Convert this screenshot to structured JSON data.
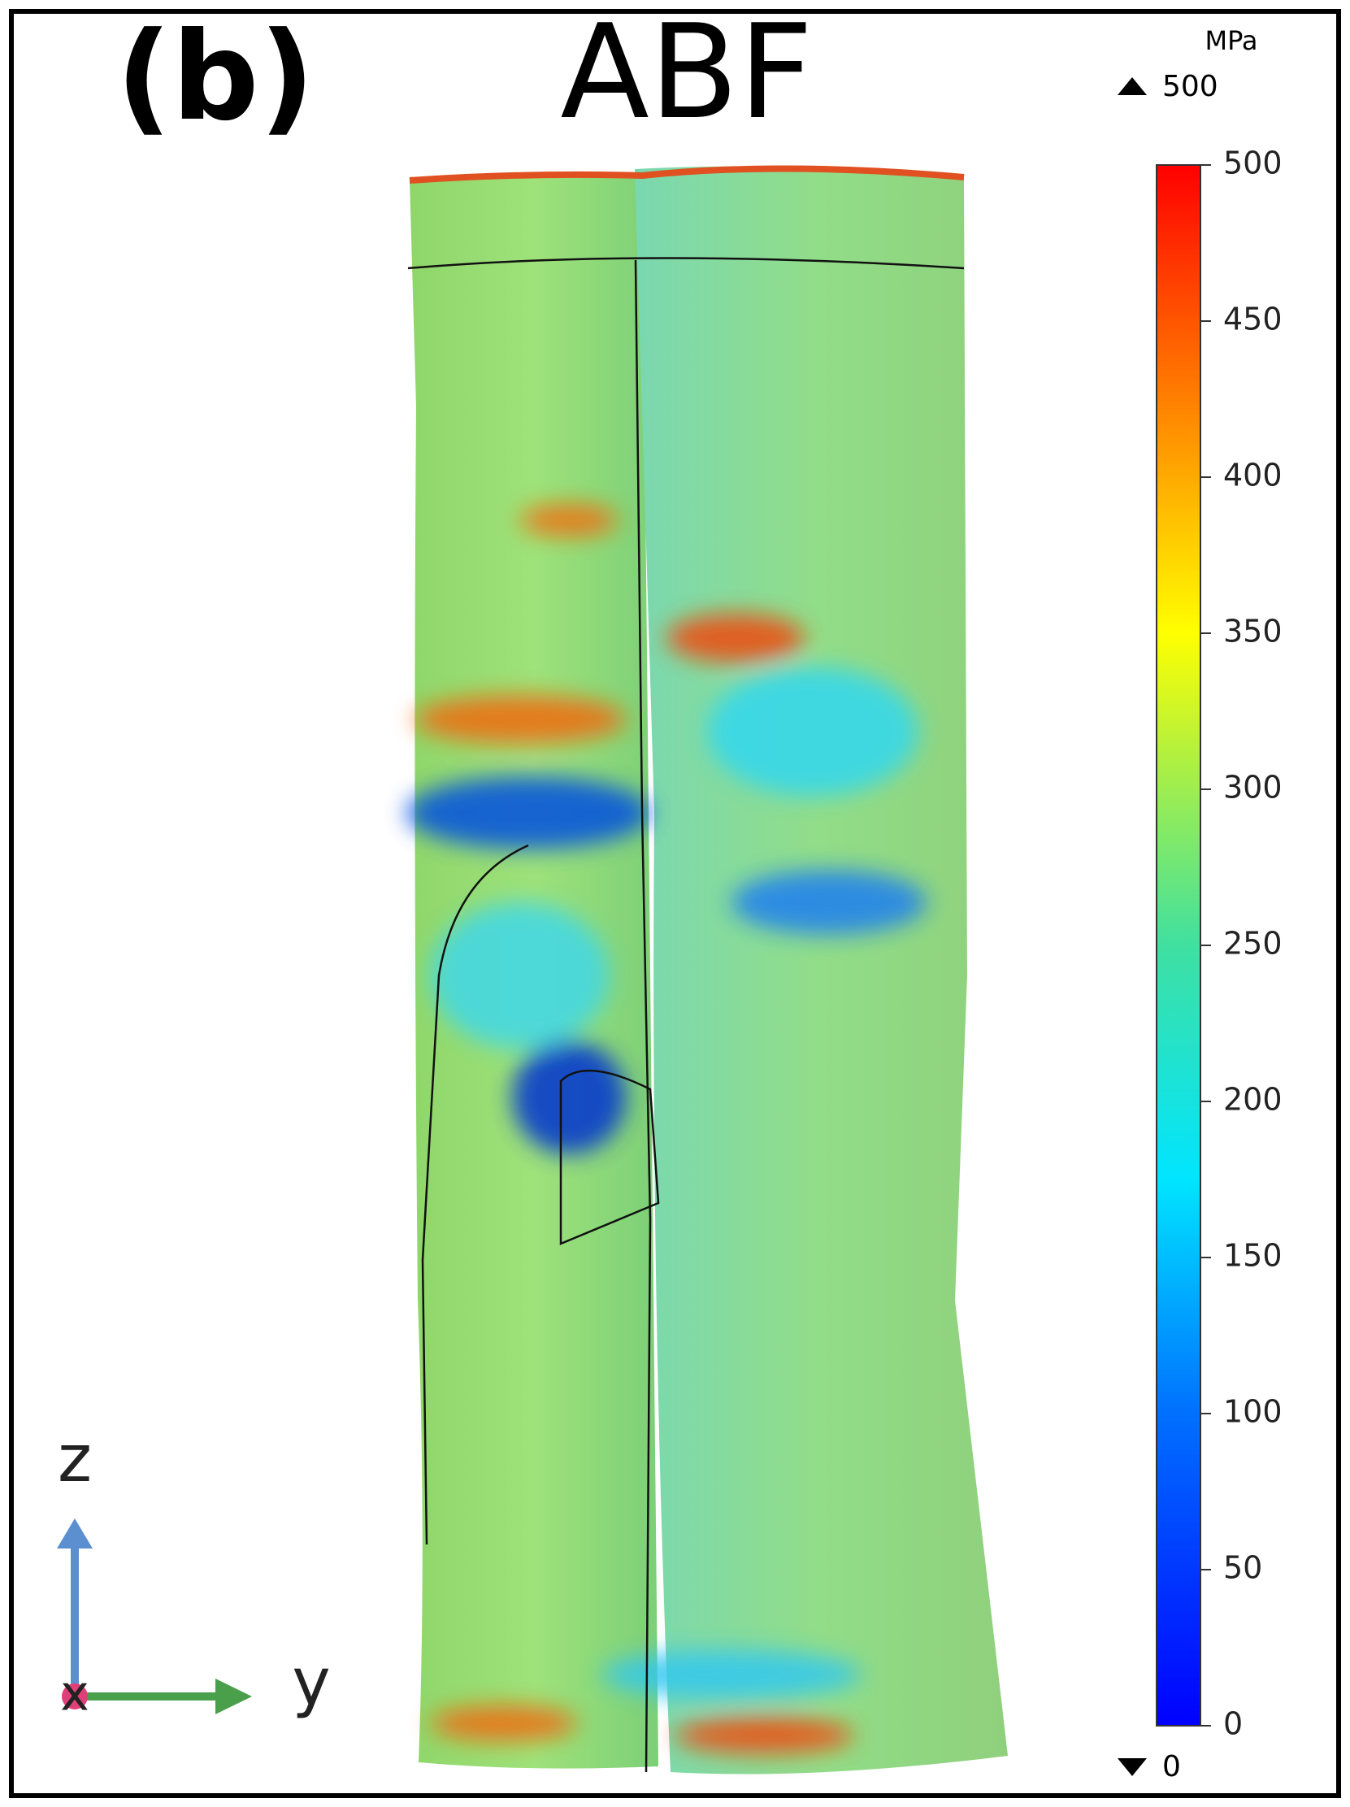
{
  "panel_label": "(b)",
  "title": "ABF",
  "colorbar": {
    "unit": "MPa",
    "max_label": "500",
    "min_label": "0",
    "range": [
      0,
      500
    ],
    "ticks": [
      0,
      50,
      100,
      150,
      200,
      250,
      300,
      350,
      400,
      450,
      500
    ]
  },
  "axes_triad": {
    "vertical": "z",
    "horizontal": "y",
    "out_of_plane": "x"
  }
}
